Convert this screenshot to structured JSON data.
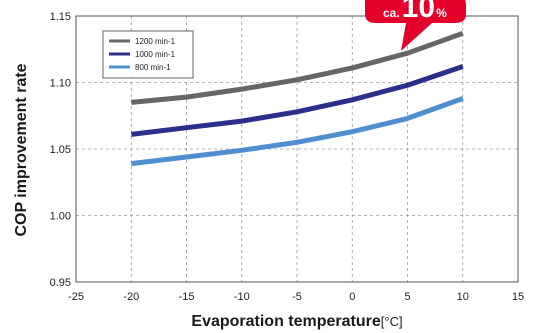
{
  "chart_data": {
    "type": "line",
    "xlabel": "Evaporation temperature",
    "xlabel_unit": "[°C]",
    "ylabel": "COP improvement rate",
    "xlim": [
      -25,
      15
    ],
    "ylim": [
      0.95,
      1.15
    ],
    "x_ticks": [
      "-25",
      "-20",
      "-15",
      "-10",
      "-5",
      "0",
      "5",
      "10",
      "15"
    ],
    "y_ticks": [
      "0.95",
      "1.00",
      "1.05",
      "1.10",
      "1.15"
    ],
    "x_tick_values": [
      -25,
      -20,
      -15,
      -10,
      -5,
      0,
      5,
      10,
      15
    ],
    "y_tick_values": [
      0.95,
      1.0,
      1.05,
      1.1,
      1.15
    ],
    "grid": true,
    "legend_position": "top-left",
    "x": [
      -20,
      -15,
      -10,
      -5,
      0,
      5,
      10
    ],
    "series": [
      {
        "name": "1200 min-1",
        "color": "#666666",
        "values": [
          1.085,
          1.089,
          1.095,
          1.102,
          1.111,
          1.122,
          1.137
        ]
      },
      {
        "name": "1000 min-1",
        "color": "#2b2f8c",
        "values": [
          1.061,
          1.066,
          1.071,
          1.078,
          1.087,
          1.098,
          1.112
        ]
      },
      {
        "name": "800 min-1",
        "color": "#4f8fd0",
        "values": [
          1.039,
          1.044,
          1.049,
          1.055,
          1.063,
          1.073,
          1.088
        ]
      }
    ],
    "callout": {
      "prefix": "ca.",
      "value": "10",
      "unit": "%",
      "color": "#e3002b"
    }
  }
}
